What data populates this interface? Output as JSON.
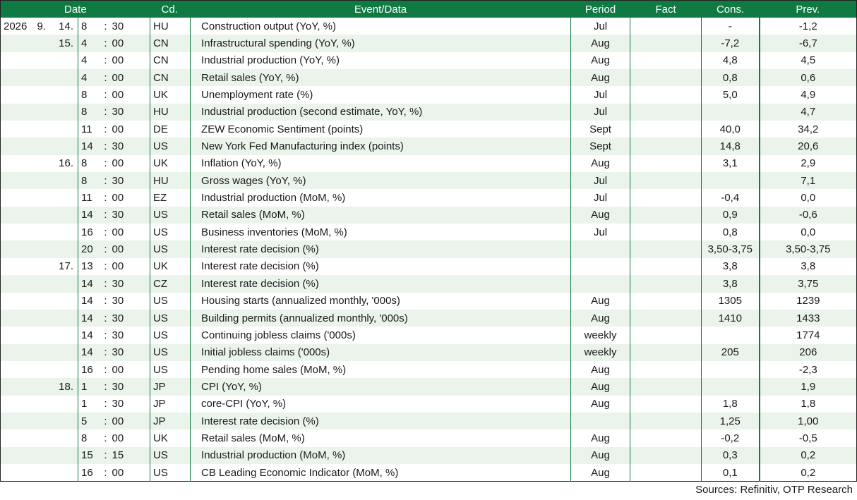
{
  "headers": {
    "date": "Date",
    "cd": "Cd.",
    "event": "Event/Data",
    "period": "Period",
    "fact": "Fact",
    "cons": "Cons.",
    "prev": "Prev."
  },
  "rows": [
    {
      "year": "2026",
      "month": "9.",
      "day": "14.",
      "hour": "8",
      "sep": ":",
      "min": "30",
      "cd": "HU",
      "event": "Construction output (YoY, %)",
      "period": "Jul",
      "fact": "",
      "cons": "-",
      "prev": "-1,2"
    },
    {
      "year": "",
      "month": "",
      "day": "15.",
      "hour": "4",
      "sep": ":",
      "min": "00",
      "cd": "CN",
      "event": "Infrastructural spending (YoY, %)",
      "period": "Aug",
      "fact": "",
      "cons": "-7,2",
      "prev": "-6,7"
    },
    {
      "year": "",
      "month": "",
      "day": "",
      "hour": "4",
      "sep": ":",
      "min": "00",
      "cd": "CN",
      "event": "Industrial production (YoY, %)",
      "period": "Aug",
      "fact": "",
      "cons": "4,8",
      "prev": "4,5"
    },
    {
      "year": "",
      "month": "",
      "day": "",
      "hour": "4",
      "sep": ":",
      "min": "00",
      "cd": "CN",
      "event": "Retail sales (YoY, %)",
      "period": "Aug",
      "fact": "",
      "cons": "0,8",
      "prev": "0,6"
    },
    {
      "year": "",
      "month": "",
      "day": "",
      "hour": "8",
      "sep": ":",
      "min": "00",
      "cd": "UK",
      "event": "Unemployment rate (%)",
      "period": "Jul",
      "fact": "",
      "cons": "5,0",
      "prev": "4,9"
    },
    {
      "year": "",
      "month": "",
      "day": "",
      "hour": "8",
      "sep": ":",
      "min": "30",
      "cd": "HU",
      "event": "Industrial production (second estimate, YoY, %)",
      "period": "Jul",
      "fact": "",
      "cons": "",
      "prev": "4,7"
    },
    {
      "year": "",
      "month": "",
      "day": "",
      "hour": "11",
      "sep": ":",
      "min": "00",
      "cd": "DE",
      "event": "ZEW Economic Sentiment (points)",
      "period": "Sept",
      "fact": "",
      "cons": "40,0",
      "prev": "34,2"
    },
    {
      "year": "",
      "month": "",
      "day": "",
      "hour": "14",
      "sep": ":",
      "min": "30",
      "cd": "US",
      "event": "New York Fed Manufacturing index (points)",
      "period": "Sept",
      "fact": "",
      "cons": "14,8",
      "prev": "20,6"
    },
    {
      "year": "",
      "month": "",
      "day": "16.",
      "hour": "8",
      "sep": ":",
      "min": "00",
      "cd": "UK",
      "event": "Inflation (YoY, %)",
      "period": "Aug",
      "fact": "",
      "cons": "3,1",
      "prev": "2,9"
    },
    {
      "year": "",
      "month": "",
      "day": "",
      "hour": "8",
      "sep": ":",
      "min": "30",
      "cd": "HU",
      "event": "Gross wages (YoY, %)",
      "period": "Jul",
      "fact": "",
      "cons": "",
      "prev": "7,1"
    },
    {
      "year": "",
      "month": "",
      "day": "",
      "hour": "11",
      "sep": ":",
      "min": "00",
      "cd": "EZ",
      "event": "Industrial production (MoM, %)",
      "period": "Jul",
      "fact": "",
      "cons": "-0,4",
      "prev": "0,0"
    },
    {
      "year": "",
      "month": "",
      "day": "",
      "hour": "14",
      "sep": ":",
      "min": "30",
      "cd": "US",
      "event": "Retail sales (MoM, %)",
      "period": "Aug",
      "fact": "",
      "cons": "0,9",
      "prev": "-0,6"
    },
    {
      "year": "",
      "month": "",
      "day": "",
      "hour": "16",
      "sep": ":",
      "min": "00",
      "cd": "US",
      "event": "Business inventories (MoM, %)",
      "period": "Jul",
      "fact": "",
      "cons": "0,8",
      "prev": "0,0"
    },
    {
      "year": "",
      "month": "",
      "day": "",
      "hour": "20",
      "sep": ":",
      "min": "00",
      "cd": "US",
      "event": "Interest rate decision (%)",
      "period": "",
      "fact": "",
      "cons": "3,50-3,75",
      "prev": "3,50-3,75"
    },
    {
      "year": "",
      "month": "",
      "day": "17.",
      "hour": "13",
      "sep": ":",
      "min": "00",
      "cd": "UK",
      "event": "Interest rate decision (%)",
      "period": "",
      "fact": "",
      "cons": "3,8",
      "prev": "3,8"
    },
    {
      "year": "",
      "month": "",
      "day": "",
      "hour": "14",
      "sep": ":",
      "min": "30",
      "cd": "CZ",
      "event": "Interest rate decision (%)",
      "period": "",
      "fact": "",
      "cons": "3,8",
      "prev": "3,75"
    },
    {
      "year": "",
      "month": "",
      "day": "",
      "hour": "14",
      "sep": ":",
      "min": "30",
      "cd": "US",
      "event": "Housing starts (annualized monthly, '000s)",
      "period": "Aug",
      "fact": "",
      "cons": "1305",
      "prev": "1239"
    },
    {
      "year": "",
      "month": "",
      "day": "",
      "hour": "14",
      "sep": ":",
      "min": "30",
      "cd": "US",
      "event": "Building permits (annualized monthly, '000s)",
      "period": "Aug",
      "fact": "",
      "cons": "1410",
      "prev": "1433"
    },
    {
      "year": "",
      "month": "",
      "day": "",
      "hour": "14",
      "sep": ":",
      "min": "30",
      "cd": "US",
      "event": "Continuing jobless claims ('000s)",
      "period": "weekly",
      "fact": "",
      "cons": "",
      "prev": "1774"
    },
    {
      "year": "",
      "month": "",
      "day": "",
      "hour": "14",
      "sep": ":",
      "min": "30",
      "cd": "US",
      "event": "Initial jobless claims ('000s)",
      "period": "weekly",
      "fact": "",
      "cons": "205",
      "prev": "206"
    },
    {
      "year": "",
      "month": "",
      "day": "",
      "hour": "16",
      "sep": ":",
      "min": "00",
      "cd": "US",
      "event": "Pending home sales (MoM, %)",
      "period": "Aug",
      "fact": "",
      "cons": "",
      "prev": "-2,3"
    },
    {
      "year": "",
      "month": "",
      "day": "18.",
      "hour": "1",
      "sep": ":",
      "min": "30",
      "cd": "JP",
      "event": "CPI (YoY, %)",
      "period": "Aug",
      "fact": "",
      "cons": "",
      "prev": "1,9"
    },
    {
      "year": "",
      "month": "",
      "day": "",
      "hour": "1",
      "sep": ":",
      "min": "30",
      "cd": "JP",
      "event": "core-CPI (YoY, %)",
      "period": "Aug",
      "fact": "",
      "cons": "1,8",
      "prev": "1,8"
    },
    {
      "year": "",
      "month": "",
      "day": "",
      "hour": "5",
      "sep": ":",
      "min": "00",
      "cd": "JP",
      "event": "Interest rate decision (%)",
      "period": "",
      "fact": "",
      "cons": "1,25",
      "prev": "1,00"
    },
    {
      "year": "",
      "month": "",
      "day": "",
      "hour": "8",
      "sep": ":",
      "min": "00",
      "cd": "UK",
      "event": "Retail sales (MoM, %)",
      "period": "Aug",
      "fact": "",
      "cons": "-0,2",
      "prev": "-0,5"
    },
    {
      "year": "",
      "month": "",
      "day": "",
      "hour": "15",
      "sep": ":",
      "min": "15",
      "cd": "US",
      "event": "Industrial production (MoM, %)",
      "period": "Aug",
      "fact": "",
      "cons": "0,3",
      "prev": "0,2"
    },
    {
      "year": "",
      "month": "",
      "day": "",
      "hour": "16",
      "sep": ":",
      "min": "00",
      "cd": "US",
      "event": "CB Leading Economic Indicator (MoM, %)",
      "period": "Aug",
      "fact": "",
      "cons": "0,1",
      "prev": "0,2"
    }
  ],
  "source": "Sources: Refinitiv, OTP Research",
  "colors": {
    "header_bg": "#0f7a42",
    "alt_row": "#eaf4ea"
  }
}
